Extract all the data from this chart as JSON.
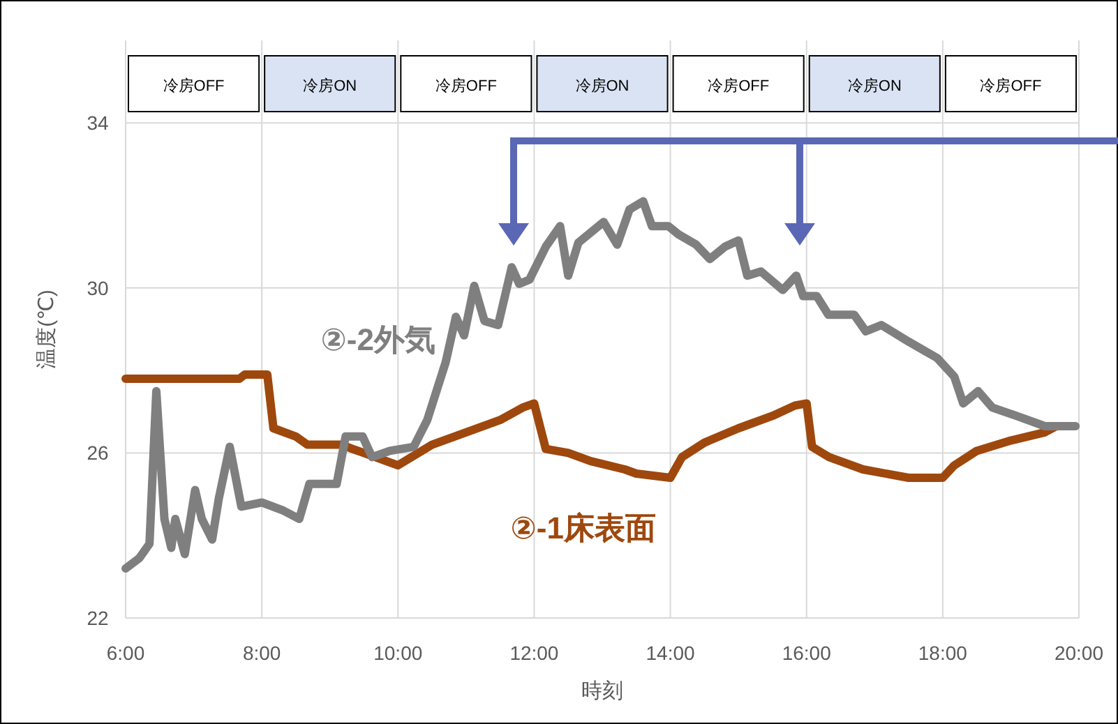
{
  "chart_data": {
    "type": "line",
    "xlabel": "時刻",
    "ylabel": "温度(℃)",
    "xlim": [
      6,
      20
    ],
    "ylim": [
      22,
      36
    ],
    "xticks": [
      {
        "value": 6,
        "label": "6:00"
      },
      {
        "value": 8,
        "label": "8:00"
      },
      {
        "value": 10,
        "label": "10:00"
      },
      {
        "value": 12,
        "label": "12:00"
      },
      {
        "value": 14,
        "label": "14:00"
      },
      {
        "value": 16,
        "label": "16:00"
      },
      {
        "value": 18,
        "label": "18:00"
      },
      {
        "value": 20,
        "label": "20:00"
      }
    ],
    "yticks": [
      22,
      26,
      30,
      34
    ],
    "grid": true,
    "line_style": "solid",
    "bands": [
      {
        "axis": "x",
        "from": 6,
        "to": 8,
        "label": "冷房OFF",
        "color": "#ffffff"
      },
      {
        "axis": "x",
        "from": 8,
        "to": 10,
        "label": "冷房ON",
        "color": "#dae3f3"
      },
      {
        "axis": "x",
        "from": 10,
        "to": 12,
        "label": "冷房OFF",
        "color": "#ffffff"
      },
      {
        "axis": "x",
        "from": 12,
        "to": 14,
        "label": "冷房ON",
        "color": "#dae3f3"
      },
      {
        "axis": "x",
        "from": 14,
        "to": 16,
        "label": "冷房OFF",
        "color": "#ffffff"
      },
      {
        "axis": "x",
        "from": 16,
        "to": 18,
        "label": "冷房ON",
        "color": "#dae3f3"
      },
      {
        "axis": "x",
        "from": 18,
        "to": 20,
        "label": "冷房OFF",
        "color": "#ffffff"
      }
    ],
    "series": [
      {
        "name": "②-1床表面",
        "color": "#9e480e",
        "x": [
          6,
          7.67,
          7.75,
          8.08,
          8.17,
          8.5,
          8.67,
          9.17,
          9.33,
          9.67,
          9.83,
          10,
          10.5,
          11,
          11.5,
          11.83,
          12,
          12.17,
          12.5,
          12.83,
          13.33,
          13.5,
          14,
          14.17,
          14.5,
          15,
          15.5,
          15.83,
          16,
          16.08,
          16.33,
          16.83,
          17.5,
          18,
          18.17,
          18.5,
          19,
          19.5,
          19.67
        ],
        "values": [
          27.8,
          27.8,
          27.9,
          27.9,
          26.6,
          26.4,
          26.2,
          26.2,
          26.1,
          25.9,
          25.8,
          25.7,
          26.2,
          26.5,
          26.8,
          27.1,
          27.2,
          26.1,
          26,
          25.8,
          25.6,
          25.5,
          25.4,
          25.9,
          26.25,
          26.6,
          26.9,
          27.15,
          27.2,
          26.15,
          25.9,
          25.6,
          25.4,
          25.4,
          25.7,
          26.05,
          26.3,
          26.5,
          26.65
        ]
      },
      {
        "name": "②-2外気",
        "color": "#7f7f7f",
        "x": [
          6,
          6.2,
          6.35,
          6.45,
          6.57,
          6.67,
          6.73,
          6.87,
          7.02,
          7.12,
          7.27,
          7.37,
          7.53,
          7.7,
          8,
          8.32,
          8.55,
          8.7,
          9.1,
          9.23,
          9.48,
          9.62,
          9.88,
          10.23,
          10.43,
          10.7,
          10.85,
          10.97,
          11.12,
          11.27,
          11.47,
          11.67,
          11.78,
          11.93,
          12.17,
          12.38,
          12.5,
          12.65,
          13.02,
          13.22,
          13.4,
          13.6,
          13.73,
          13.97,
          14.12,
          14.38,
          14.58,
          14.8,
          15,
          15.13,
          15.33,
          15.65,
          15.85,
          15.95,
          16.15,
          16.32,
          16.7,
          16.87,
          17.1,
          17.5,
          17.92,
          18.17,
          18.3,
          18.52,
          18.73,
          19.08,
          19.5,
          19.95
        ],
        "values": [
          23.2,
          23.45,
          23.8,
          27.5,
          24.4,
          23.7,
          24.4,
          23.55,
          25.1,
          24.4,
          23.9,
          24.9,
          26.15,
          24.7,
          24.8,
          24.6,
          24.4,
          25.25,
          25.25,
          26.4,
          26.4,
          25.9,
          26.05,
          26.15,
          26.8,
          28.2,
          29.3,
          28.85,
          30.05,
          29.2,
          29.1,
          30.5,
          30.1,
          30.2,
          31,
          31.5,
          30.3,
          31.1,
          31.6,
          31.05,
          31.9,
          32.1,
          31.5,
          31.5,
          31.3,
          31.05,
          30.7,
          31,
          31.15,
          30.3,
          30.4,
          29.95,
          30.3,
          29.8,
          29.8,
          29.35,
          29.35,
          28.95,
          29.1,
          28.7,
          28.3,
          27.85,
          27.2,
          27.5,
          27.1,
          26.9,
          26.65,
          26.65
        ]
      }
    ]
  }
}
